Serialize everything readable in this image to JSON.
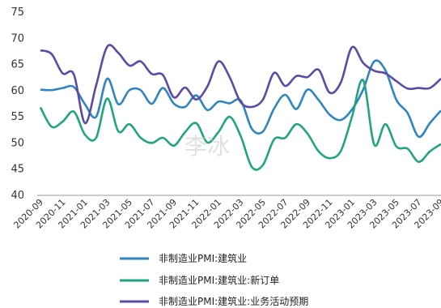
{
  "chart_data": {
    "type": "line",
    "ylim": [
      40,
      75
    ],
    "yticks": [
      40,
      45,
      50,
      55,
      60,
      65,
      70,
      75
    ],
    "x": [
      "2020-09",
      "2020-10",
      "2020-11",
      "2020-12",
      "2021-01",
      "2021-02",
      "2021-03",
      "2021-04",
      "2021-05",
      "2021-06",
      "2021-07",
      "2021-08",
      "2021-09",
      "2021-10",
      "2021-11",
      "2021-12",
      "2022-01",
      "2022-02",
      "2022-03",
      "2022-04",
      "2022-05",
      "2022-06",
      "2022-07",
      "2022-08",
      "2022-09",
      "2022-10",
      "2022-11",
      "2022-12",
      "2023-01",
      "2023-02",
      "2023-03",
      "2023-04",
      "2023-05",
      "2023-06",
      "2023-07",
      "2023-08",
      "2023-09"
    ],
    "xtick_labels": [
      "2020-09",
      "2020-11",
      "2021-01",
      "2021-03",
      "2021-05",
      "2021-07",
      "2021-09",
      "2021-11",
      "2022-01",
      "2022-03",
      "2022-05",
      "2022-07",
      "2022-09",
      "2022-11",
      "2023-01",
      "2023-03",
      "2023-05",
      "2023-07",
      "2023-09"
    ],
    "series": [
      {
        "name": "非制造业PMI:建筑业",
        "color": "#2e86c1",
        "values": [
          60.2,
          60.1,
          60.5,
          60.7,
          57.4,
          55.0,
          62.3,
          57.4,
          60.1,
          60.1,
          57.5,
          60.5,
          57.5,
          56.9,
          59.1,
          56.3,
          57.9,
          57.6,
          58.1,
          52.7,
          52.2,
          56.6,
          59.2,
          56.5,
          60.2,
          58.2,
          55.4,
          54.4,
          56.4,
          60.2,
          65.6,
          63.9,
          58.2,
          55.7,
          51.2,
          53.8,
          56.2
        ]
      },
      {
        "name": "非制造业PMI:建筑业:新订单",
        "color": "#21a57f",
        "values": [
          56.8,
          53.1,
          54.1,
          56.0,
          51.6,
          51.0,
          58.5,
          52.2,
          53.6,
          51.0,
          50.0,
          51.0,
          49.5,
          52.1,
          53.8,
          50.1,
          52.1,
          55.0,
          51.3,
          45.4,
          45.8,
          50.7,
          51.0,
          53.6,
          51.8,
          48.4,
          47.1,
          48.5,
          55.0,
          62.0,
          49.7,
          53.6,
          49.3,
          48.9,
          46.4,
          48.4,
          49.8
        ]
      },
      {
        "name": "非制造业PMI:建筑业:业务活动预期",
        "color": "#5b4aa6",
        "values": [
          67.7,
          67.0,
          63.3,
          63.1,
          53.8,
          61.0,
          68.4,
          67.2,
          64.8,
          65.6,
          63.2,
          63.0,
          58.7,
          60.6,
          58.3,
          60.8,
          65.6,
          62.6,
          57.8,
          56.9,
          58.3,
          63.4,
          60.9,
          62.8,
          62.6,
          64.0,
          59.6,
          61.6,
          68.3,
          65.3,
          63.8,
          63.3,
          61.8,
          60.4,
          60.5,
          60.5,
          62.3
        ]
      }
    ],
    "watermark": "李冰"
  }
}
